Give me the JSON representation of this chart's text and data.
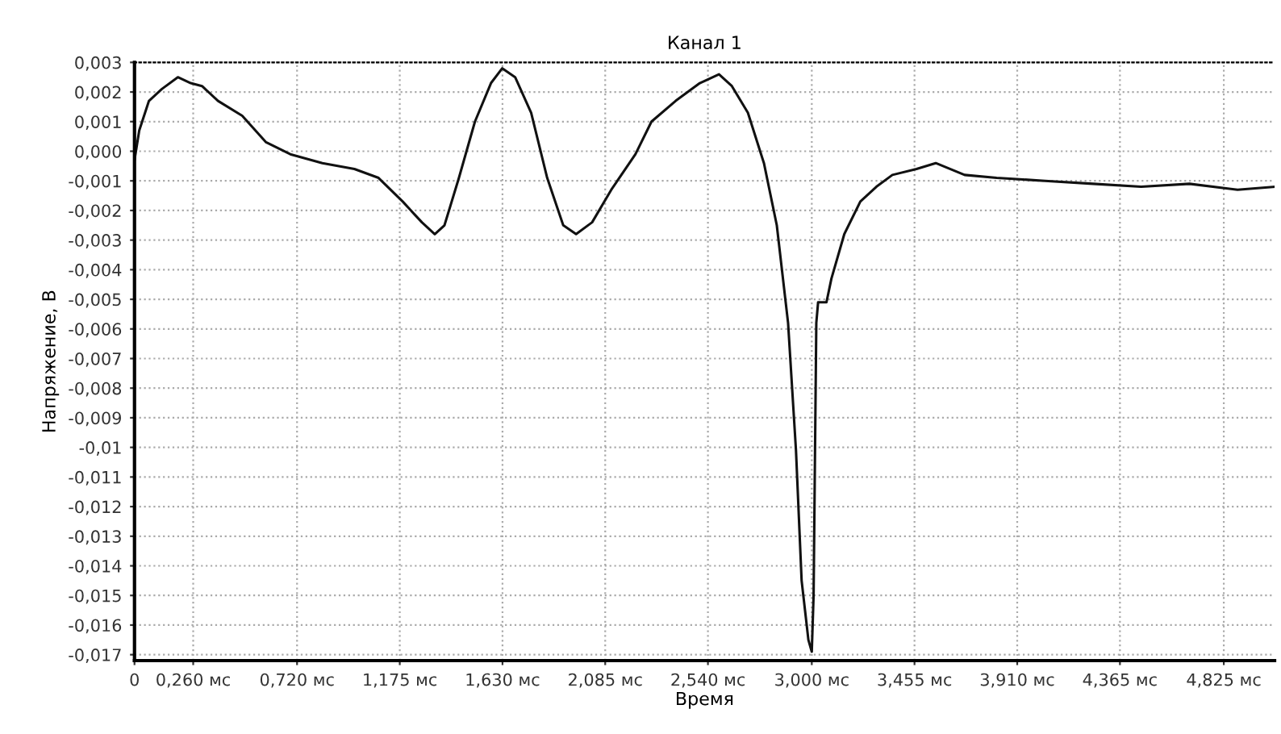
{
  "chart_data": {
    "type": "line",
    "title": "Канал 1",
    "xlabel": "Время",
    "ylabel": "Напряжение, В",
    "series": [
      {
        "color": "#111111",
        "x": [
          0,
          0.021,
          0.064,
          0.121,
          0.192,
          0.249,
          0.299,
          0.37,
          0.477,
          0.583,
          0.69,
          0.832,
          0.974,
          1.081,
          1.188,
          1.273,
          1.33,
          1.373,
          1.437,
          1.508,
          1.579,
          1.629,
          1.686,
          1.757,
          1.828,
          1.899,
          1.956,
          2.027,
          2.112,
          2.219,
          2.29,
          2.397,
          2.504,
          2.589,
          2.646,
          2.717,
          2.788,
          2.845,
          2.895,
          2.93,
          2.955,
          2.985,
          3.0,
          3.008,
          3.013,
          3.02,
          3.028,
          3.065,
          3.087,
          3.144,
          3.215,
          3.286,
          3.357,
          3.464,
          3.549,
          3.677,
          3.819,
          4.033,
          4.246,
          4.459,
          4.673,
          4.886,
          5.05
        ],
        "values": [
          -0.0003,
          0.0007,
          0.0017,
          0.0021,
          0.0025,
          0.0023,
          0.0022,
          0.0017,
          0.0012,
          0.0003,
          -0.0001,
          -0.0004,
          -0.0006,
          -0.0009,
          -0.0017,
          -0.0024,
          -0.0028,
          -0.0025,
          -0.0009,
          0.001,
          0.0023,
          0.0028,
          0.0025,
          0.0013,
          -0.0009,
          -0.0025,
          -0.0028,
          -0.0024,
          -0.0013,
          -0.0001,
          0.001,
          0.0017,
          0.0023,
          0.0026,
          0.0022,
          0.0013,
          -0.0004,
          -0.0025,
          -0.0058,
          -0.0101,
          -0.0145,
          -0.0165,
          -0.0169,
          -0.015,
          -0.0112,
          -0.0058,
          -0.0051,
          -0.0051,
          -0.0043,
          -0.0028,
          -0.0017,
          -0.0012,
          -0.0008,
          -0.0006,
          -0.0004,
          -0.0008,
          -0.0009,
          -0.001,
          -0.0011,
          -0.0012,
          -0.0011,
          -0.0013,
          -0.0012
        ]
      }
    ],
    "xlim": [
      0,
      5.05
    ],
    "xticks": [
      {
        "value": 0,
        "label": "0"
      },
      {
        "value": 0.26,
        "label": "0,260 мс"
      },
      {
        "value": 0.72,
        "label": "0,720 мс"
      },
      {
        "value": 1.175,
        "label": "1,175 мс"
      },
      {
        "value": 1.63,
        "label": "1,630 мс"
      },
      {
        "value": 2.085,
        "label": "2,085 мс"
      },
      {
        "value": 2.54,
        "label": "2,540 мс"
      },
      {
        "value": 3.0,
        "label": "3,000 мс"
      },
      {
        "value": 3.455,
        "label": "3,455 мс"
      },
      {
        "value": 3.91,
        "label": "3,910 мс"
      },
      {
        "value": 4.365,
        "label": "4,365 мс"
      },
      {
        "value": 4.825,
        "label": "4,825 мс"
      }
    ],
    "ylim": [
      -0.0172,
      0.003
    ],
    "yticks": [
      {
        "value": 0.003,
        "label": "0,003"
      },
      {
        "value": 0.002,
        "label": "0,002"
      },
      {
        "value": 0.001,
        "label": "0,001"
      },
      {
        "value": 0,
        "label": "0,000"
      },
      {
        "value": -0.001,
        "label": "-0,001"
      },
      {
        "value": -0.002,
        "label": "-0,002"
      },
      {
        "value": -0.003,
        "label": "-0,003"
      },
      {
        "value": -0.004,
        "label": "-0,004"
      },
      {
        "value": -0.005,
        "label": "-0,005"
      },
      {
        "value": -0.006,
        "label": "-0,006"
      },
      {
        "value": -0.007,
        "label": "-0,007"
      },
      {
        "value": -0.008,
        "label": "-0,008"
      },
      {
        "value": -0.009,
        "label": "-0,009"
      },
      {
        "value": -0.01,
        "label": "-0,01"
      },
      {
        "value": -0.011,
        "label": "-0,011"
      },
      {
        "value": -0.012,
        "label": "-0,012"
      },
      {
        "value": -0.013,
        "label": "-0,013"
      },
      {
        "value": -0.014,
        "label": "-0,014"
      },
      {
        "value": -0.015,
        "label": "-0,015"
      },
      {
        "value": -0.016,
        "label": "-0,016"
      },
      {
        "value": -0.017,
        "label": "-0,017"
      }
    ],
    "grid": true,
    "marker": "none",
    "line_style": "solid"
  }
}
